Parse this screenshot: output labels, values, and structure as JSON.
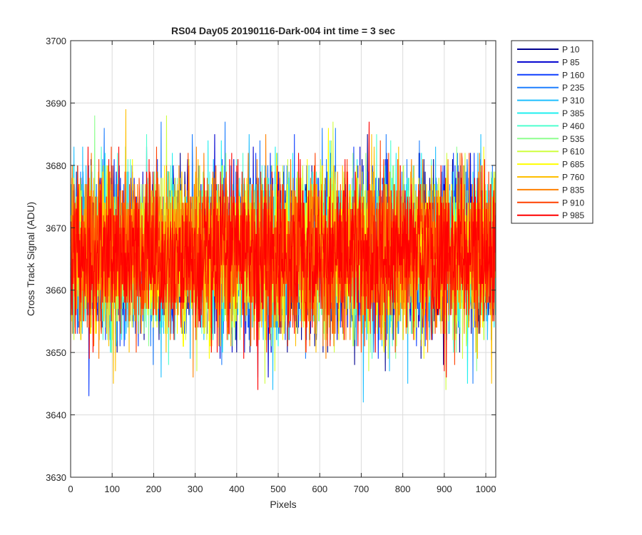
{
  "chart_data": {
    "type": "line",
    "title": "RS04 Day05 20190116-Dark-004 int time = 3 sec",
    "xlabel": "Pixels",
    "ylabel": "Cross Track Signal (ADU)",
    "xlim": [
      0,
      1024
    ],
    "ylim": [
      3630,
      3700
    ],
    "xticks": [
      0,
      100,
      200,
      300,
      400,
      500,
      600,
      700,
      800,
      900,
      1000
    ],
    "yticks": [
      3630,
      3640,
      3650,
      3660,
      3670,
      3680,
      3690,
      3700
    ],
    "grid": true,
    "legend_position": "outside-top-right",
    "n_points_per_series": 1024,
    "signal_mean": 3666,
    "signal_typical_range": [
      3648,
      3684
    ],
    "signal_extremes": [
      3637,
      3695
    ],
    "series": [
      {
        "name": "P 10",
        "color": "#00008f"
      },
      {
        "name": "P 85",
        "color": "#0000cf"
      },
      {
        "name": "P 160",
        "color": "#0f3fff"
      },
      {
        "name": "P 235",
        "color": "#1f7fff"
      },
      {
        "name": "P 310",
        "color": "#1fbfff"
      },
      {
        "name": "P 385",
        "color": "#1fefef"
      },
      {
        "name": "P 460",
        "color": "#4fffcf"
      },
      {
        "name": "P 535",
        "color": "#8fff8f"
      },
      {
        "name": "P 610",
        "color": "#cfff3f"
      },
      {
        "name": "P 685",
        "color": "#ffff00"
      },
      {
        "name": "P 760",
        "color": "#ffbf00"
      },
      {
        "name": "P 835",
        "color": "#ff8000"
      },
      {
        "name": "P 910",
        "color": "#ff4000"
      },
      {
        "name": "P 985",
        "color": "#ff0000"
      }
    ]
  }
}
